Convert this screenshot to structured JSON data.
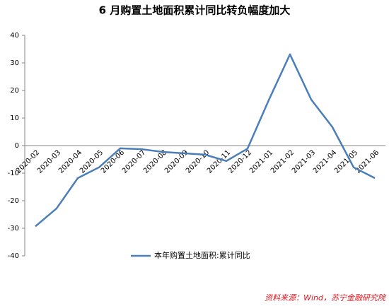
{
  "chart_data": {
    "type": "line",
    "title": "6 月购置土地面积累计同比转负幅度加大",
    "categories": [
      "2020-02",
      "2020-03",
      "2020-04",
      "2020-05",
      "2020-06",
      "2020-07",
      "2020-08",
      "2020-09",
      "2020-10",
      "2020-11",
      "2020-12",
      "2021-01",
      "2021-02",
      "2021-03",
      "2021-04",
      "2021-05",
      "2021-06"
    ],
    "series": [
      {
        "name": "本年购置土地面积:累计同比",
        "color": "#4a7ebb",
        "values": [
          -29.3,
          -22.8,
          -11.8,
          -7.9,
          -1.0,
          -1.3,
          -2.3,
          -2.8,
          -3.3,
          -5.6,
          -1.1,
          16.5,
          33.1,
          16.7,
          6.7,
          -7.9,
          -11.8
        ]
      }
    ],
    "ylim": [
      -40,
      40
    ],
    "yticks": [
      -40,
      -30,
      -20,
      -10,
      0,
      10,
      20,
      30,
      40
    ],
    "grid": false,
    "legend": "bottom",
    "source": "资料来源：Wind，苏宁金融研究院"
  }
}
